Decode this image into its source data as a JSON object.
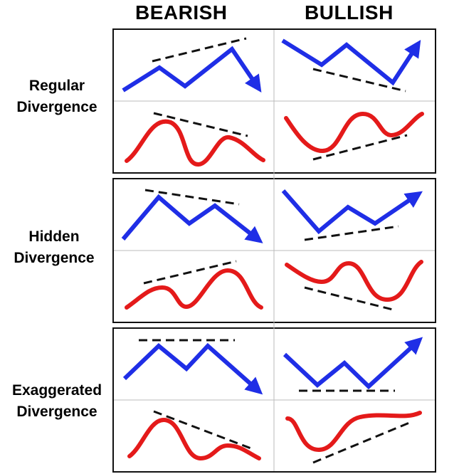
{
  "headers": {
    "bearish": "BEARISH",
    "bullish": "BULLISH"
  },
  "rows": [
    {
      "label_line1": "Regular",
      "label_line2": "Divergence"
    },
    {
      "label_line1": "Hidden",
      "label_line2": "Divergence"
    },
    {
      "label_line1": "Exaggerated",
      "label_line2": "Divergence"
    }
  ],
  "colors": {
    "price_line": "#1f2ee6",
    "oscillator_line": "#e41a1a",
    "trend_line": "#111111",
    "border": "#111111",
    "divider": "#bbbbbb"
  },
  "icons": [
    "arrow-head-icon"
  ]
}
